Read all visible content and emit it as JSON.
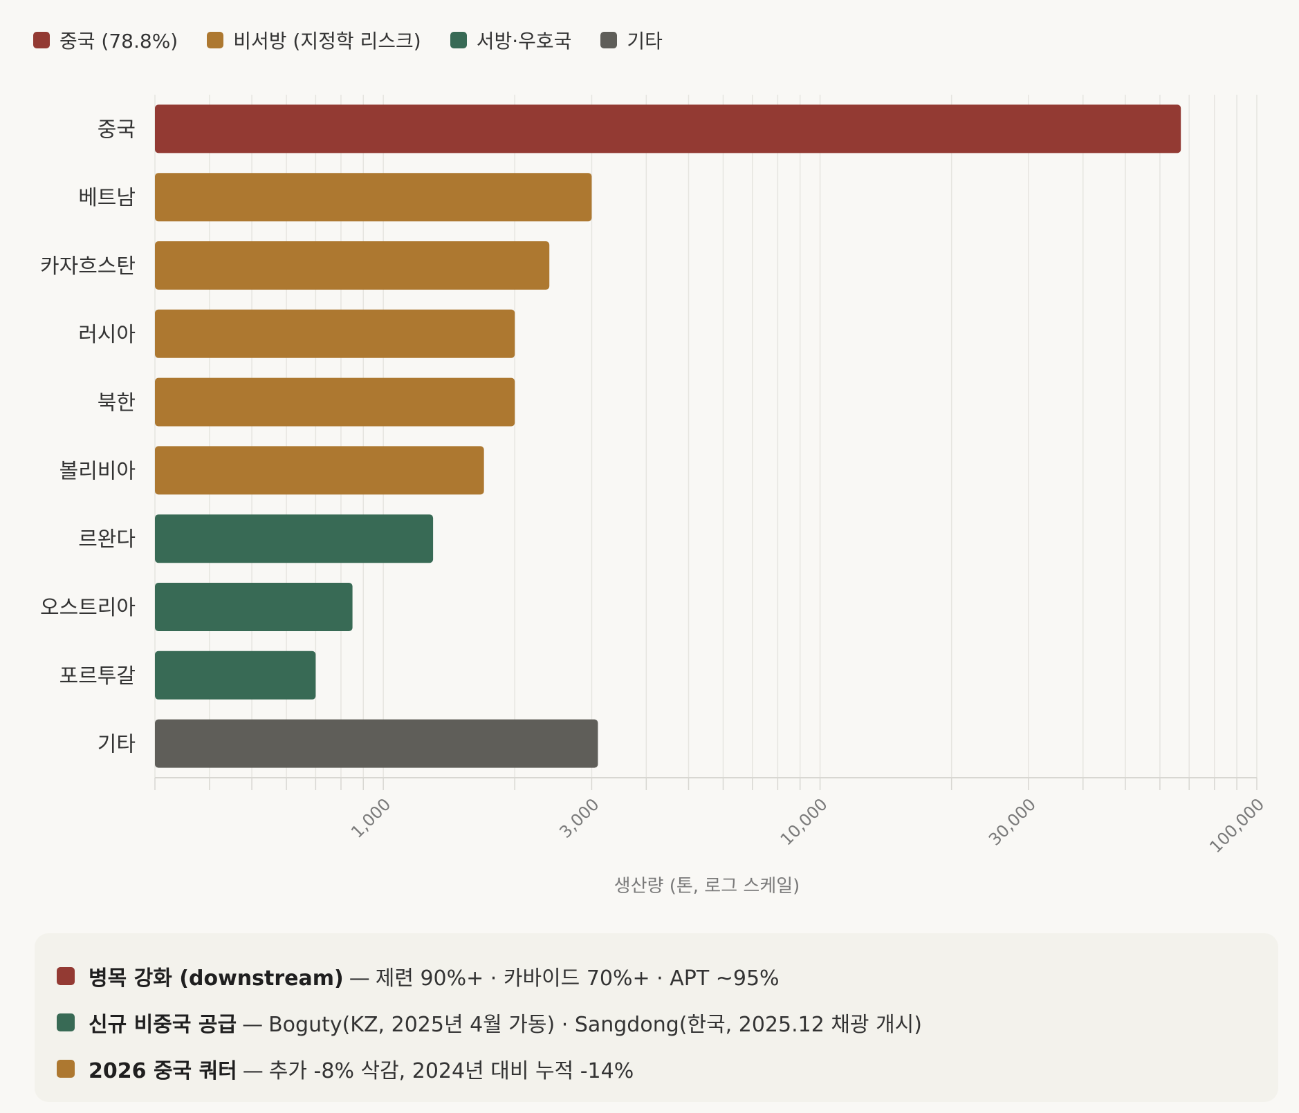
{
  "colors": {
    "china": "#933a33",
    "non_western": "#ad7830",
    "western": "#386a55",
    "other": "#5f5e59",
    "grid": "#e6e5e0",
    "axis": "#d8d7d2",
    "tick_text": "#7a7a7a"
  },
  "legend": [
    {
      "label": "중국 (78.8%)",
      "color": "#933a33"
    },
    {
      "label": "비서방 (지정학 리스크)",
      "color": "#ad7830"
    },
    {
      "label": "서방·우호국",
      "color": "#386a55"
    },
    {
      "label": "기타",
      "color": "#5f5e59"
    }
  ],
  "chart_data": {
    "type": "bar",
    "orientation": "horizontal",
    "xscale": "log",
    "xlim": [
      300,
      100000
    ],
    "xlabel": "생산량 (톤, 로그 스케일)",
    "xticks": [
      1000,
      3000,
      10000,
      30000,
      100000
    ],
    "xtick_labels": [
      "1,000",
      "3,000",
      "10,000",
      "30,000",
      "100,000"
    ],
    "grid": true,
    "legend_position": "top-left",
    "categories": [
      "중국",
      "베트남",
      "카자흐스탄",
      "러시아",
      "북한",
      "볼리비아",
      "르완다",
      "오스트리아",
      "포르투갈",
      "기타"
    ],
    "values": [
      67000,
      3000,
      2400,
      2000,
      2000,
      1700,
      1300,
      850,
      700,
      3100
    ],
    "groups": [
      "china",
      "non_western",
      "non_western",
      "non_western",
      "non_western",
      "non_western",
      "western",
      "western",
      "western",
      "other"
    ]
  },
  "notes": [
    {
      "title": "병목 강화 (downstream)",
      "sep": "—",
      "text": "제련 90%+ · 카바이드 70%+ · APT ~95%",
      "color": "#933a33"
    },
    {
      "title": "신규 비중국 공급",
      "sep": "—",
      "text": "Boguty(KZ, 2025년 4월 가동) · Sangdong(한국, 2025.12 채광 개시)",
      "color": "#386a55"
    },
    {
      "title": "2026 중국 쿼터",
      "sep": "—",
      "text": "추가 -8% 삭감, 2024년 대비 누적 -14%",
      "color": "#ad7830"
    }
  ]
}
